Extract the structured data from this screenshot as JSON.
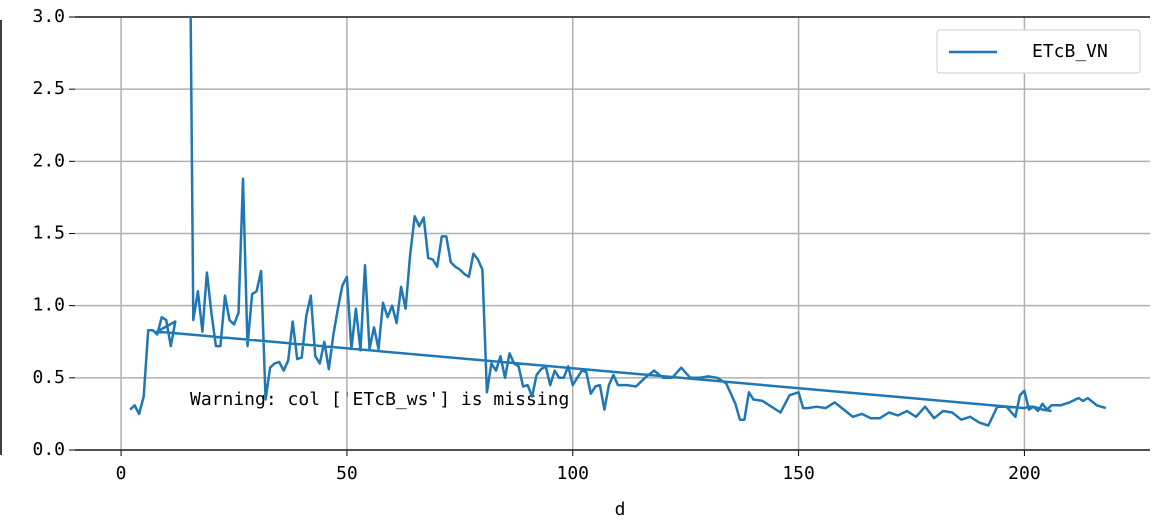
{
  "chart_data": {
    "type": "line",
    "xlabel": "d",
    "annotation": "Warning: col ['ETcB_ws'] is missing",
    "xlim": [
      -10.2,
      227.8
    ],
    "ylim": [
      0,
      3
    ],
    "xticks": [
      0,
      50,
      100,
      150,
      200
    ],
    "yticks": [
      {
        "value": 0,
        "label": "0.0"
      },
      0.5,
      {
        "value": 1,
        "label": "1.0"
      },
      1.5,
      {
        "value": 2,
        "label": "2.0"
      },
      2.5,
      {
        "value": 3,
        "label": "3.0"
      }
    ],
    "grid": true,
    "legend": "upper right",
    "series": [
      {
        "name": "ETcB_VN",
        "color": "#1f77b4",
        "x": [
          2,
          3,
          4,
          5,
          6,
          7,
          8,
          9,
          10,
          11,
          12,
          8,
          200,
          201,
          202,
          203,
          204,
          205,
          206,
          208,
          210,
          212,
          213,
          214,
          216,
          218,
          null,
          15,
          16,
          17,
          18,
          19,
          20,
          21,
          22,
          23,
          24,
          25,
          26,
          27,
          28,
          29,
          30,
          31,
          32,
          33,
          34,
          35,
          36,
          37,
          38,
          39,
          40,
          41,
          42,
          43,
          44,
          45,
          46,
          47,
          48,
          49,
          50,
          51,
          52,
          53,
          54,
          55,
          56,
          57,
          58,
          59,
          60,
          61,
          62,
          63,
          64,
          65,
          66,
          67,
          68,
          69,
          70,
          71,
          72,
          73,
          74,
          75,
          76,
          77,
          78,
          79,
          80,
          81,
          82,
          83,
          84,
          85,
          86,
          87,
          88,
          89,
          90,
          91,
          92,
          93,
          94,
          95,
          96,
          97,
          98,
          99,
          100,
          101,
          102,
          103,
          104,
          105,
          106,
          107,
          108,
          109,
          110,
          112,
          114,
          116,
          118,
          120,
          122,
          124,
          126,
          128,
          130,
          132,
          134,
          136,
          137,
          138,
          139,
          140,
          142,
          144,
          146,
          148,
          150,
          151,
          152,
          154,
          156,
          158,
          160,
          162,
          164,
          166,
          168,
          170,
          172,
          174,
          176,
          178,
          180,
          182,
          184,
          186,
          188,
          190,
          192,
          194,
          196,
          198,
          199,
          200,
          201,
          202,
          204,
          206
        ],
        "values": [
          0.28,
          0.31,
          0.25,
          0.37,
          0.83,
          0.83,
          0.8,
          0.92,
          0.9,
          0.72,
          0.89,
          0.82,
          0.29,
          0.3,
          0.3,
          0.27,
          0.32,
          0.28,
          0.31,
          0.31,
          0.33,
          0.36,
          0.34,
          0.36,
          0.31,
          0.29,
          null,
          4.5,
          0.9,
          1.1,
          0.82,
          1.23,
          0.95,
          0.72,
          0.72,
          1.07,
          0.9,
          0.87,
          0.95,
          1.88,
          0.72,
          1.08,
          1.1,
          1.24,
          0.35,
          0.57,
          0.6,
          0.61,
          0.55,
          0.62,
          0.89,
          0.63,
          0.64,
          0.93,
          1.07,
          0.65,
          0.6,
          0.75,
          0.56,
          0.8,
          0.98,
          1.14,
          1.2,
          0.7,
          0.98,
          0.69,
          1.28,
          0.7,
          0.85,
          0.7,
          1.02,
          0.92,
          1.0,
          0.88,
          1.13,
          0.98,
          1.35,
          1.62,
          1.55,
          1.61,
          1.33,
          1.32,
          1.27,
          1.48,
          1.48,
          1.3,
          1.27,
          1.25,
          1.22,
          1.2,
          1.36,
          1.32,
          1.25,
          0.4,
          0.6,
          0.55,
          0.65,
          0.5,
          0.67,
          0.6,
          0.58,
          0.44,
          0.45,
          0.37,
          0.52,
          0.56,
          0.58,
          0.45,
          0.55,
          0.5,
          0.5,
          0.58,
          0.45,
          0.5,
          0.55,
          0.54,
          0.39,
          0.44,
          0.45,
          0.28,
          0.45,
          0.52,
          0.45,
          0.45,
          0.44,
          0.5,
          0.55,
          0.5,
          0.5,
          0.57,
          0.5,
          0.5,
          0.51,
          0.5,
          0.46,
          0.32,
          0.21,
          0.21,
          0.4,
          0.35,
          0.34,
          0.3,
          0.26,
          0.38,
          0.4,
          0.29,
          0.29,
          0.3,
          0.29,
          0.33,
          0.28,
          0.23,
          0.25,
          0.22,
          0.22,
          0.26,
          0.24,
          0.27,
          0.23,
          0.3,
          0.22,
          0.27,
          0.26,
          0.21,
          0.23,
          0.19,
          0.17,
          0.3,
          0.3,
          0.23,
          0.38,
          0.41,
          0.28,
          0.3,
          0.28,
          0.27
        ]
      }
    ]
  }
}
